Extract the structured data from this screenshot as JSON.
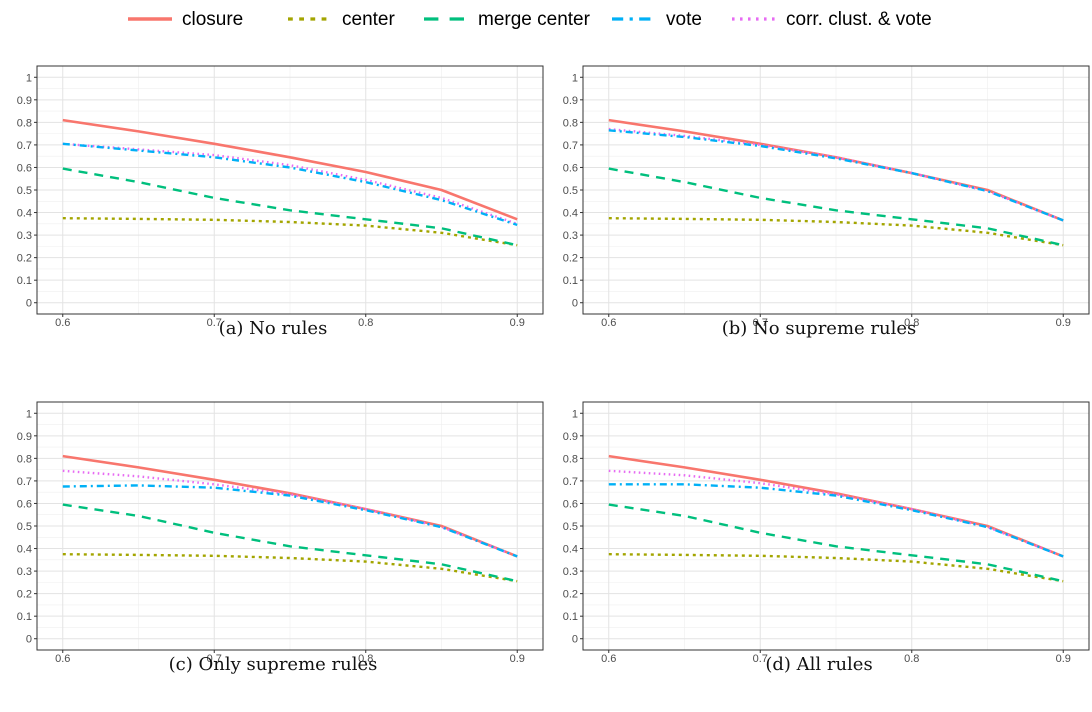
{
  "legend": [
    {
      "name": "closure",
      "color": "#F8766D",
      "dash": "solid"
    },
    {
      "name": "center",
      "color": "#A3A500",
      "dash": "dotted"
    },
    {
      "name": "merge center",
      "color": "#00BF7D",
      "dash": "dashed"
    },
    {
      "name": "vote",
      "color": "#00B0F6",
      "dash": "dotdash"
    },
    {
      "name": "corr. clust. & vote",
      "color": "#E76BF3",
      "dash": "dotted-fine"
    }
  ],
  "chart_data": [
    {
      "type": "line",
      "caption": "(a) No rules",
      "x": [
        0.6,
        0.65,
        0.7,
        0.75,
        0.8,
        0.85,
        0.9
      ],
      "xticks": [
        "0.6",
        "0.7",
        "0.8",
        "0.9"
      ],
      "yticks": [
        "0",
        "0.1",
        "0.2",
        "0.3",
        "0.4",
        "0.5",
        "0.6",
        "0.7",
        "0.8",
        "0.9",
        "1"
      ],
      "xlim": [
        0.583,
        0.917
      ],
      "ylim": [
        -0.05,
        1.05
      ],
      "grid": true,
      "series": [
        {
          "name": "closure",
          "values": [
            0.81,
            0.76,
            0.705,
            0.645,
            0.58,
            0.5,
            0.37
          ]
        },
        {
          "name": "center",
          "values": [
            0.375,
            0.372,
            0.368,
            0.358,
            0.342,
            0.31,
            0.255
          ]
        },
        {
          "name": "merge center",
          "values": [
            0.595,
            0.535,
            0.465,
            0.41,
            0.37,
            0.33,
            0.255
          ]
        },
        {
          "name": "vote",
          "values": [
            0.705,
            0.675,
            0.645,
            0.6,
            0.535,
            0.455,
            0.345
          ]
        },
        {
          "name": "corr. clust. & vote",
          "values": [
            0.705,
            0.68,
            0.655,
            0.61,
            0.545,
            0.465,
            0.35
          ]
        }
      ]
    },
    {
      "type": "line",
      "caption": "(b) No supreme rules",
      "x": [
        0.6,
        0.65,
        0.7,
        0.75,
        0.8,
        0.85,
        0.9
      ],
      "xticks": [
        "0.6",
        "0.7",
        "0.8",
        "0.9"
      ],
      "yticks": [
        "0",
        "0.1",
        "0.2",
        "0.3",
        "0.4",
        "0.5",
        "0.6",
        "0.7",
        "0.8",
        "0.9",
        "1"
      ],
      "xlim": [
        0.583,
        0.917
      ],
      "ylim": [
        -0.05,
        1.05
      ],
      "grid": true,
      "series": [
        {
          "name": "closure",
          "values": [
            0.81,
            0.76,
            0.705,
            0.645,
            0.575,
            0.5,
            0.365
          ]
        },
        {
          "name": "center",
          "values": [
            0.375,
            0.372,
            0.368,
            0.358,
            0.342,
            0.31,
            0.255
          ]
        },
        {
          "name": "merge center",
          "values": [
            0.595,
            0.535,
            0.465,
            0.41,
            0.37,
            0.33,
            0.255
          ]
        },
        {
          "name": "vote",
          "values": [
            0.765,
            0.735,
            0.695,
            0.64,
            0.575,
            0.495,
            0.365
          ]
        },
        {
          "name": "corr. clust. & vote",
          "values": [
            0.77,
            0.74,
            0.7,
            0.645,
            0.575,
            0.495,
            0.365
          ]
        }
      ]
    },
    {
      "type": "line",
      "caption": "(c) Only supreme rules",
      "x": [
        0.6,
        0.65,
        0.7,
        0.75,
        0.8,
        0.85,
        0.9
      ],
      "xticks": [
        "0.6",
        "0.7",
        "0.8",
        "0.9"
      ],
      "yticks": [
        "0",
        "0.1",
        "0.2",
        "0.3",
        "0.4",
        "0.5",
        "0.6",
        "0.7",
        "0.8",
        "0.9",
        "1"
      ],
      "xlim": [
        0.583,
        0.917
      ],
      "ylim": [
        -0.05,
        1.05
      ],
      "grid": true,
      "series": [
        {
          "name": "closure",
          "values": [
            0.81,
            0.76,
            0.705,
            0.645,
            0.575,
            0.5,
            0.365
          ]
        },
        {
          "name": "center",
          "values": [
            0.375,
            0.372,
            0.368,
            0.358,
            0.342,
            0.31,
            0.255
          ]
        },
        {
          "name": "merge center",
          "values": [
            0.595,
            0.545,
            0.47,
            0.41,
            0.37,
            0.33,
            0.255
          ]
        },
        {
          "name": "vote",
          "values": [
            0.675,
            0.68,
            0.67,
            0.635,
            0.57,
            0.495,
            0.365
          ]
        },
        {
          "name": "corr. clust. & vote",
          "values": [
            0.745,
            0.72,
            0.685,
            0.64,
            0.575,
            0.495,
            0.365
          ]
        }
      ]
    },
    {
      "type": "line",
      "caption": "(d) All rules",
      "x": [
        0.6,
        0.65,
        0.7,
        0.75,
        0.8,
        0.85,
        0.9
      ],
      "xticks": [
        "0.6",
        "0.7",
        "0.8",
        "0.9"
      ],
      "yticks": [
        "0",
        "0.1",
        "0.2",
        "0.3",
        "0.4",
        "0.5",
        "0.6",
        "0.7",
        "0.8",
        "0.9",
        "1"
      ],
      "xlim": [
        0.583,
        0.917
      ],
      "ylim": [
        -0.05,
        1.05
      ],
      "grid": true,
      "series": [
        {
          "name": "closure",
          "values": [
            0.81,
            0.76,
            0.705,
            0.645,
            0.575,
            0.5,
            0.365
          ]
        },
        {
          "name": "center",
          "values": [
            0.375,
            0.372,
            0.368,
            0.358,
            0.342,
            0.31,
            0.255
          ]
        },
        {
          "name": "merge center",
          "values": [
            0.595,
            0.545,
            0.47,
            0.41,
            0.37,
            0.33,
            0.255
          ]
        },
        {
          "name": "vote",
          "values": [
            0.685,
            0.685,
            0.67,
            0.635,
            0.57,
            0.495,
            0.365
          ]
        },
        {
          "name": "corr. clust. & vote",
          "values": [
            0.745,
            0.725,
            0.69,
            0.64,
            0.575,
            0.495,
            0.365
          ]
        }
      ]
    }
  ]
}
